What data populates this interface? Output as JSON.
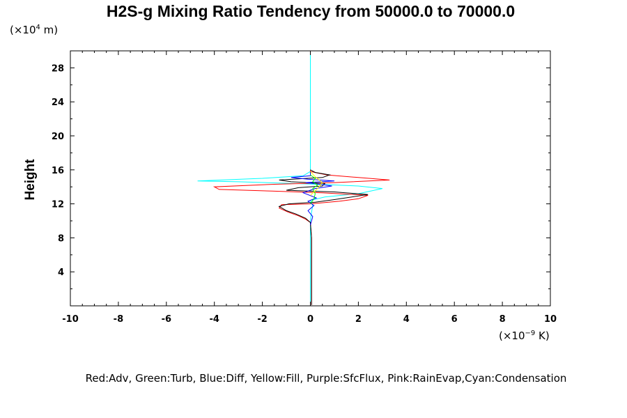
{
  "chart_data": {
    "type": "line",
    "title": "H2S-g Mixing Ratio Tendency from 50000.0 to 70000.0",
    "ylabel": "Height",
    "y_unit": {
      "prefix": "(×10",
      "exp": "4",
      "suffix": " m)"
    },
    "x_unit": {
      "prefix": "(×10",
      "exp": "−9",
      "suffix": " K)"
    },
    "xlim": [
      -10,
      10
    ],
    "ylim": [
      0,
      30
    ],
    "x_ticks": [
      "-10",
      "-8",
      "-6",
      "-4",
      "-2",
      "0",
      "2",
      "4",
      "6",
      "8",
      "10"
    ],
    "y_ticks": [
      "4",
      "8",
      "12",
      "16",
      "20",
      "24",
      "28"
    ],
    "grid": false,
    "legend_text": "Red:Adv, Green:Turb, Blue:Diff, Yellow:Fill, Purple:SfcFlux, Pink:RainEvap,Cyan:Condensation",
    "series": [
      {
        "color": "#00ffff",
        "points": [
          [
            0.0,
            0.1
          ],
          [
            0.0,
            4
          ],
          [
            0.0,
            8
          ],
          [
            0.0,
            10
          ],
          [
            0.05,
            11
          ],
          [
            0.1,
            11.8
          ],
          [
            0.0,
            12.4
          ],
          [
            0.6,
            12.8
          ],
          [
            2.0,
            13.2
          ],
          [
            3.0,
            13.8
          ],
          [
            2.0,
            14.1
          ],
          [
            0.3,
            14.3
          ],
          [
            -3.0,
            14.6
          ],
          [
            -4.7,
            14.7
          ],
          [
            -2.0,
            15.0
          ],
          [
            -0.3,
            15.3
          ],
          [
            0.0,
            15.8
          ],
          [
            0.0,
            16.2
          ],
          [
            0.0,
            20
          ],
          [
            0.0,
            25
          ],
          [
            0.0,
            30
          ]
        ]
      },
      {
        "color": "#ff0000",
        "points": [
          [
            0.05,
            0.1
          ],
          [
            0.05,
            4
          ],
          [
            0.05,
            8
          ],
          [
            0.0,
            9.8
          ],
          [
            -0.2,
            10.2
          ],
          [
            -0.5,
            10.6
          ],
          [
            -0.9,
            11.0
          ],
          [
            -1.3,
            11.5
          ],
          [
            -1.2,
            11.9
          ],
          [
            0.0,
            12.0
          ],
          [
            1.2,
            12.3
          ],
          [
            2.0,
            12.6
          ],
          [
            2.4,
            13.0
          ],
          [
            0.5,
            13.3
          ],
          [
            -1.6,
            13.5
          ],
          [
            -3.8,
            13.7
          ],
          [
            -4.0,
            14.0
          ],
          [
            -1.5,
            14.3
          ],
          [
            1.0,
            14.5
          ],
          [
            3.3,
            14.8
          ],
          [
            2.0,
            15.1
          ],
          [
            0.7,
            15.4
          ],
          [
            0.0,
            15.8
          ],
          [
            0.0,
            16.0
          ]
        ]
      },
      {
        "color": "#000000",
        "points": [
          [
            0.05,
            0.1
          ],
          [
            0.05,
            4
          ],
          [
            0.05,
            8
          ],
          [
            0.0,
            9.8
          ],
          [
            -0.2,
            10.3
          ],
          [
            -0.6,
            10.8
          ],
          [
            -1.0,
            11.2
          ],
          [
            -1.3,
            11.7
          ],
          [
            -0.9,
            12.0
          ],
          [
            0.2,
            12.2
          ],
          [
            1.0,
            12.5
          ],
          [
            2.4,
            13.1
          ],
          [
            1.0,
            13.4
          ],
          [
            -1.0,
            13.6
          ],
          [
            -0.5,
            13.9
          ],
          [
            0.5,
            14.1
          ],
          [
            0.6,
            14.4
          ],
          [
            -0.8,
            14.6
          ],
          [
            -1.3,
            14.8
          ],
          [
            0.5,
            15.1
          ],
          [
            0.8,
            15.4
          ],
          [
            0.2,
            15.7
          ],
          [
            0.0,
            16.0
          ]
        ]
      },
      {
        "color": "#0000ff",
        "points": [
          [
            0.0,
            9.5
          ],
          [
            0.1,
            10.5
          ],
          [
            -0.1,
            11.2
          ],
          [
            0.15,
            11.8
          ],
          [
            -0.1,
            12.3
          ],
          [
            0.25,
            12.7
          ],
          [
            -0.3,
            13.3
          ],
          [
            0.2,
            13.8
          ],
          [
            0.9,
            14.1
          ],
          [
            0.4,
            14.3
          ],
          [
            -0.2,
            14.5
          ],
          [
            1.0,
            14.7
          ],
          [
            -0.1,
            14.9
          ],
          [
            -0.8,
            15.1
          ],
          [
            0.0,
            15.3
          ],
          [
            0.0,
            15.8
          ]
        ]
      },
      {
        "color": "#00ff00",
        "points": [
          [
            0.0,
            12.0
          ],
          [
            0.15,
            12.6
          ],
          [
            0.2,
            13.2
          ],
          [
            0.1,
            13.8
          ],
          [
            0.3,
            14.2
          ],
          [
            0.1,
            14.6
          ],
          [
            0.2,
            15.0
          ],
          [
            0.0,
            15.4
          ]
        ]
      },
      {
        "color": "#ffff00",
        "points": [
          [
            0.0,
            13.0
          ],
          [
            0.3,
            13.8
          ],
          [
            0.5,
            14.5
          ],
          [
            0.2,
            15.2
          ],
          [
            0.0,
            15.8
          ]
        ]
      }
    ]
  }
}
